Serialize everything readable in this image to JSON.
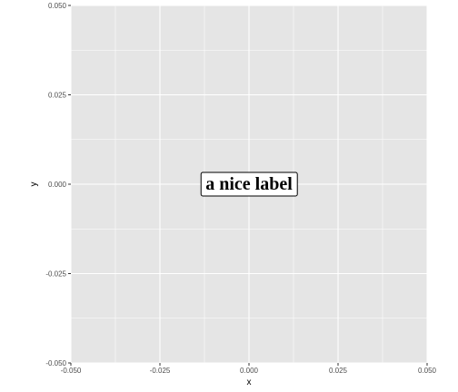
{
  "chart_data": {
    "type": "scatter",
    "title": "",
    "xlabel": "x",
    "ylabel": "y",
    "xlim": [
      -0.05,
      0.05
    ],
    "ylim": [
      -0.05,
      0.05
    ],
    "x_ticks": [
      -0.05,
      -0.025,
      0.0,
      0.025,
      0.05
    ],
    "x_tick_labels": [
      "-0.050",
      "-0.025",
      "0.000",
      "0.025",
      "0.050"
    ],
    "y_ticks": [
      -0.05,
      -0.025,
      0.0,
      0.025,
      0.05
    ],
    "y_tick_labels": [
      "-0.050",
      "-0.025",
      "0.000",
      "0.025",
      "0.050"
    ],
    "grid": true,
    "labels": [
      {
        "x": 0,
        "y": 0,
        "text": "a nice label"
      }
    ],
    "panel_background": "#e5e5e5",
    "grid_color": "#ffffff"
  }
}
